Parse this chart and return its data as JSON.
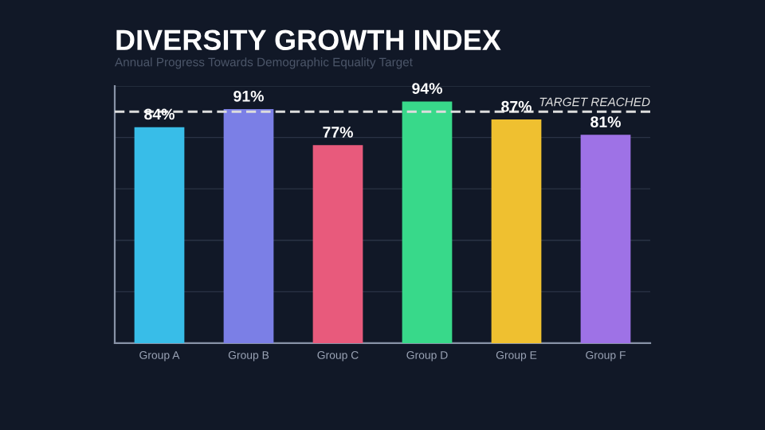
{
  "chart_data": {
    "type": "bar",
    "title": "DIVERSITY GROWTH INDEX",
    "subtitle": "Annual Progress Towards Demographic Equality Target",
    "categories": [
      "Group A",
      "Group B",
      "Group C",
      "Group D",
      "Group E",
      "Group F"
    ],
    "values": [
      84,
      91,
      77,
      94,
      87,
      81
    ],
    "colors": [
      "#38bde8",
      "#7b7fe6",
      "#e85a7c",
      "#38d98a",
      "#efc030",
      "#9e72e6"
    ],
    "value_labels": [
      "84%",
      "91%",
      "77%",
      "94%",
      "87%",
      "81%"
    ],
    "ylim": [
      0,
      100
    ],
    "yticks": [
      {
        "value": 20,
        "label": null
      },
      {
        "value": 40,
        "label": null
      },
      {
        "value": 60,
        "label": null
      },
      {
        "value": 80,
        "label": null
      },
      {
        "value": 100,
        "label": null
      }
    ],
    "tick_labels": "x",
    "grid": "y",
    "ref_lines": [
      {
        "axis": "y",
        "value": 90,
        "label": "TARGET REACHED",
        "color": "#dddddd",
        "line_style": "dashed"
      }
    ]
  }
}
